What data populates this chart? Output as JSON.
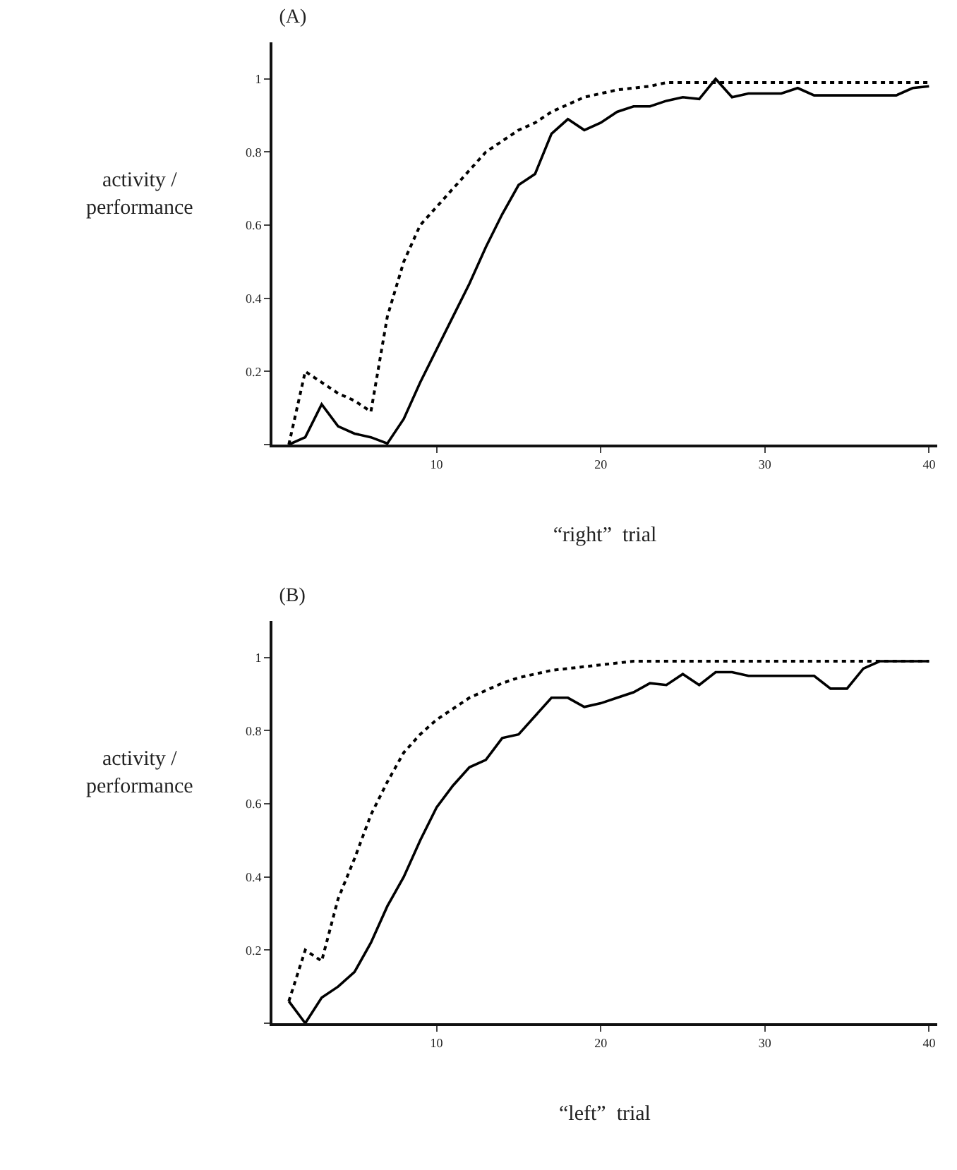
{
  "chart_data": [
    {
      "type": "line",
      "title": "(A)",
      "xlabel": "“right”  trial",
      "ylabel": "activity /\nperformance",
      "x": [
        1,
        2,
        3,
        4,
        5,
        6,
        7,
        8,
        9,
        10,
        11,
        12,
        13,
        14,
        15,
        16,
        17,
        18,
        19,
        20,
        21,
        22,
        23,
        24,
        25,
        26,
        27,
        28,
        29,
        30,
        31,
        32,
        33,
        34,
        35,
        36,
        37,
        38,
        39,
        40
      ],
      "series": [
        {
          "color": "#000000",
          "line_style": "solid",
          "values": [
            0,
            0.02,
            0.11,
            0.05,
            0.03,
            0.02,
            0.003,
            0.07,
            0.17,
            0.26,
            0.35,
            0.44,
            0.54,
            0.63,
            0.71,
            0.74,
            0.85,
            0.89,
            0.86,
            0.88,
            0.91,
            0.925,
            0.925,
            0.94,
            0.95,
            0.945,
            1.0,
            0.95,
            0.96,
            0.96,
            0.96,
            0.975,
            0.955,
            0.955,
            0.955,
            0.955,
            0.955,
            0.955,
            0.975,
            0.98
          ]
        },
        {
          "color": "#000000",
          "line_style": "dotted",
          "values": [
            0,
            0.2,
            0.17,
            0.14,
            0.12,
            0.09,
            0.35,
            0.5,
            0.6,
            0.65,
            0.7,
            0.75,
            0.8,
            0.83,
            0.86,
            0.88,
            0.91,
            0.93,
            0.95,
            0.96,
            0.97,
            0.975,
            0.98,
            0.99,
            0.99,
            0.99,
            0.99,
            0.99,
            0.99,
            0.99,
            0.99,
            0.99,
            0.99,
            0.99,
            0.99,
            0.99,
            0.99,
            0.99,
            0.99,
            0.99
          ]
        }
      ],
      "xlim": [
        0,
        40.5
      ],
      "ylim": [
        0,
        1.1
      ],
      "xticks": [
        10,
        20,
        30,
        40
      ],
      "yticks": [
        {
          "value": 0,
          "label": null
        },
        0.2,
        0.4,
        0.6,
        0.8,
        1
      ],
      "grid": false,
      "marker": "none"
    },
    {
      "type": "line",
      "title": "(B)",
      "xlabel": "“left”  trial",
      "ylabel": "activity /\nperformance",
      "x": [
        1,
        2,
        3,
        4,
        5,
        6,
        7,
        8,
        9,
        10,
        11,
        12,
        13,
        14,
        15,
        16,
        17,
        18,
        19,
        20,
        21,
        22,
        23,
        24,
        25,
        26,
        27,
        28,
        29,
        30,
        31,
        32,
        33,
        34,
        35,
        36,
        37,
        38,
        39,
        40
      ],
      "series": [
        {
          "color": "#000000",
          "line_style": "solid",
          "values": [
            0.06,
            0,
            0.07,
            0.1,
            0.14,
            0.22,
            0.32,
            0.4,
            0.5,
            0.59,
            0.65,
            0.7,
            0.72,
            0.78,
            0.79,
            0.84,
            0.89,
            0.89,
            0.865,
            0.875,
            0.89,
            0.905,
            0.93,
            0.925,
            0.955,
            0.925,
            0.96,
            0.96,
            0.95,
            0.95,
            0.95,
            0.95,
            0.95,
            0.915,
            0.915,
            0.97,
            0.99,
            0.99,
            0.99,
            0.99
          ]
        },
        {
          "color": "#000000",
          "line_style": "dotted",
          "values": [
            0.06,
            0.2,
            0.17,
            0.34,
            0.45,
            0.57,
            0.66,
            0.74,
            0.79,
            0.83,
            0.86,
            0.89,
            0.91,
            0.93,
            0.945,
            0.955,
            0.965,
            0.97,
            0.975,
            0.98,
            0.985,
            0.99,
            0.99,
            0.99,
            0.99,
            0.99,
            0.99,
            0.99,
            0.99,
            0.99,
            0.99,
            0.99,
            0.99,
            0.99,
            0.99,
            0.99,
            0.99,
            0.99,
            0.99,
            0.99
          ]
        }
      ],
      "xlim": [
        0,
        40.5
      ],
      "ylim": [
        0,
        1.1
      ],
      "xticks": [
        10,
        20,
        30,
        40
      ],
      "yticks": [
        {
          "value": 0,
          "label": null
        },
        0.2,
        0.4,
        0.6,
        0.8,
        1
      ],
      "grid": false,
      "marker": "none"
    }
  ]
}
